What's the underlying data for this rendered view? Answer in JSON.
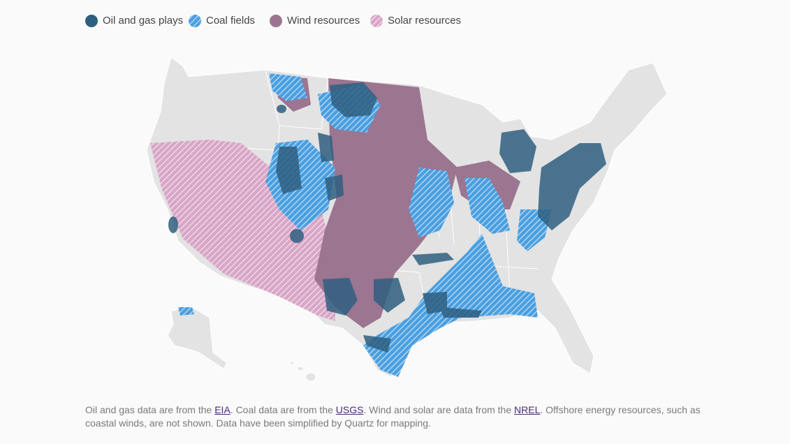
{
  "legend": [
    {
      "label": "Oil and gas plays",
      "color": "#2f5f80",
      "pattern": false
    },
    {
      "label": "Coal fields",
      "color": "#4a9fe0",
      "pattern": true
    },
    {
      "label": "Wind resources",
      "color": "#9c7590",
      "pattern": false
    },
    {
      "label": "Solar resources",
      "color": "#d8a6c6",
      "pattern": true
    }
  ],
  "note": [
    {
      "text": "Oil and gas data are from the ",
      "link": false
    },
    {
      "text": "EIA",
      "link": true
    },
    {
      "text": ". Coal data are from the ",
      "link": false
    },
    {
      "text": "USGS",
      "link": true
    },
    {
      "text": ". Wind and solar are data from the ",
      "link": false
    },
    {
      "text": "NREL",
      "link": true
    },
    {
      "text": ". Offshore energy resources, such as coastal winds, are not shown. Data have been simplified by Quartz for mapping.",
      "link": false
    }
  ]
}
